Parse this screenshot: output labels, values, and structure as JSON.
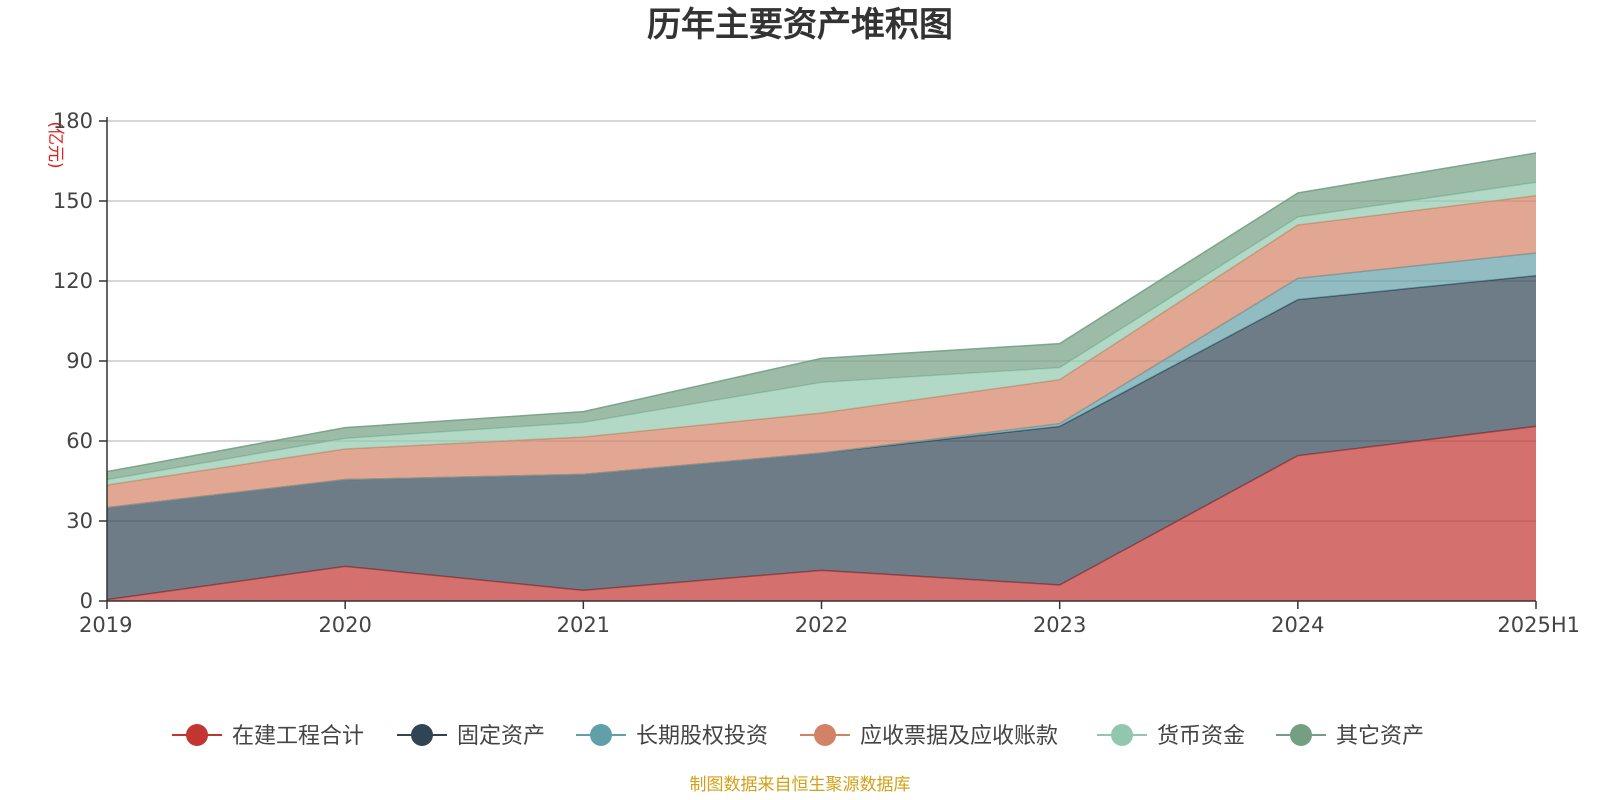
{
  "chart_data": {
    "type": "area",
    "stacked": true,
    "title": "历年主要资产堆积图",
    "y_unit_label": "(亿元)",
    "categories": [
      "2019",
      "2020",
      "2021",
      "2022",
      "2023",
      "2024",
      "2025H1"
    ],
    "ylim": [
      0,
      180
    ],
    "y_ticks": [
      0,
      30,
      60,
      90,
      120,
      150,
      180
    ],
    "grid": true,
    "legend_position": "bottom",
    "series": [
      {
        "name": "在建工程合计",
        "color": "#c23531",
        "values": [
          0.5,
          13,
          4,
          11.5,
          6,
          54.5,
          65.5
        ]
      },
      {
        "name": "固定资产",
        "color": "#2f4554",
        "values": [
          34.5,
          32.5,
          43.5,
          44,
          59.5,
          58.5,
          56.5
        ]
      },
      {
        "name": "长期股权投资",
        "color": "#61a0a8",
        "values": [
          0,
          0,
          0,
          0,
          1,
          8,
          8.5
        ]
      },
      {
        "name": "应收票据及应收账款",
        "color": "#d48265",
        "values": [
          8.5,
          11.5,
          14,
          15,
          16.5,
          20,
          21.5
        ]
      },
      {
        "name": "货币资金",
        "color": "#91c7ae",
        "values": [
          2,
          4,
          5.5,
          11.5,
          4.5,
          3,
          5
        ]
      },
      {
        "name": "其它资产",
        "color": "#749f83",
        "values": [
          3,
          4,
          4,
          9,
          9,
          9,
          11
        ]
      }
    ],
    "source_note": "制图数据来自恒生聚源数据库"
  }
}
